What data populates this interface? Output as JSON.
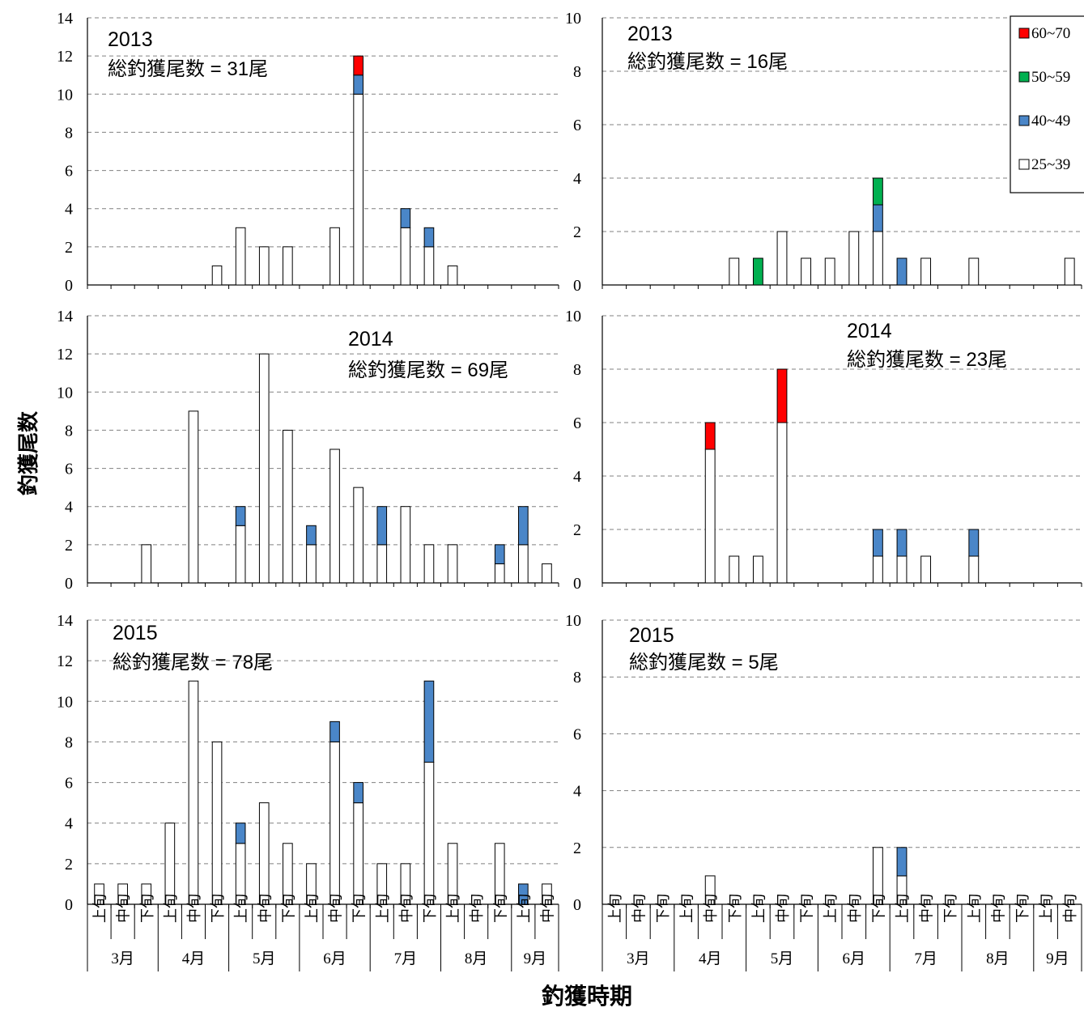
{
  "ylabel": "釣獲尾数",
  "xlabel": "釣獲時期",
  "colors": {
    "c60_70": "#ff0000",
    "c50_59": "#00b050",
    "c40_49": "#4a86c8",
    "c25_39": "#ffffff"
  },
  "legend": [
    {
      "label": "60~70",
      "color_key": "c60_70"
    },
    {
      "label": "50~59",
      "color_key": "c50_59"
    },
    {
      "label": "40~49",
      "color_key": "c40_49"
    },
    {
      "label": "25~39",
      "color_key": "c25_39"
    }
  ],
  "chart_data": [
    {
      "type": "bar",
      "panel": "left-2013",
      "year": "2013",
      "total": "総釣獲尾数 = 31尾",
      "ylim": [
        0,
        14
      ],
      "yticks": [
        0,
        2,
        4,
        6,
        8,
        10,
        12,
        14
      ],
      "categories": [
        "3月上旬",
        "3月中旬",
        "3月下旬",
        "4月上旬",
        "4月中旬",
        "4月下旬",
        "5月上旬",
        "5月中旬",
        "5月下旬",
        "6月上旬",
        "6月中旬",
        "6月下旬",
        "7月上旬",
        "7月中旬",
        "7月下旬",
        "8月上旬",
        "8月中旬",
        "8月下旬",
        "9月上旬",
        "9月中旬"
      ],
      "series": [
        {
          "name": "25~39",
          "color_key": "c25_39",
          "values": [
            0,
            0,
            0,
            0,
            0,
            1,
            3,
            2,
            2,
            0,
            3,
            10,
            0,
            3,
            2,
            1,
            0,
            0,
            0,
            0
          ]
        },
        {
          "name": "40~49",
          "color_key": "c40_49",
          "values": [
            0,
            0,
            0,
            0,
            0,
            0,
            0,
            0,
            0,
            0,
            0,
            1,
            0,
            1,
            1,
            0,
            0,
            0,
            0,
            0
          ]
        },
        {
          "name": "50~59",
          "color_key": "c50_59",
          "values": [
            0,
            0,
            0,
            0,
            0,
            0,
            0,
            0,
            0,
            0,
            0,
            0,
            0,
            0,
            0,
            0,
            0,
            0,
            0,
            0
          ]
        },
        {
          "name": "60~70",
          "color_key": "c60_70",
          "values": [
            0,
            0,
            0,
            0,
            0,
            0,
            0,
            0,
            0,
            0,
            0,
            1,
            0,
            0,
            0,
            0,
            0,
            0,
            0,
            0
          ]
        }
      ]
    },
    {
      "type": "bar",
      "panel": "right-2013",
      "year": "2013",
      "total": "総釣獲尾数 = 16尾",
      "ylim": [
        0,
        10
      ],
      "yticks": [
        0,
        2,
        4,
        6,
        8,
        10
      ],
      "categories": [
        "3月上旬",
        "3月中旬",
        "3月下旬",
        "4月上旬",
        "4月中旬",
        "4月下旬",
        "5月上旬",
        "5月中旬",
        "5月下旬",
        "6月上旬",
        "6月中旬",
        "6月下旬",
        "7月上旬",
        "7月中旬",
        "7月下旬",
        "8月上旬",
        "8月中旬",
        "8月下旬",
        "9月上旬",
        "9月中旬"
      ],
      "series": [
        {
          "name": "25~39",
          "color_key": "c25_39",
          "values": [
            0,
            0,
            0,
            0,
            0,
            1,
            0,
            2,
            1,
            1,
            2,
            2,
            0,
            1,
            0,
            1,
            0,
            0,
            0,
            1
          ]
        },
        {
          "name": "40~49",
          "color_key": "c40_49",
          "values": [
            0,
            0,
            0,
            0,
            0,
            0,
            0,
            0,
            0,
            0,
            0,
            1,
            1,
            0,
            0,
            0,
            0,
            0,
            0,
            0
          ]
        },
        {
          "name": "50~59",
          "color_key": "c50_59",
          "values": [
            0,
            0,
            0,
            0,
            0,
            0,
            1,
            0,
            0,
            0,
            0,
            1,
            0,
            0,
            0,
            0,
            0,
            0,
            0,
            0
          ]
        },
        {
          "name": "60~70",
          "color_key": "c60_70",
          "values": [
            0,
            0,
            0,
            0,
            0,
            0,
            0,
            0,
            0,
            0,
            0,
            0,
            0,
            0,
            0,
            0,
            0,
            0,
            0,
            0
          ]
        }
      ]
    },
    {
      "type": "bar",
      "panel": "left-2014",
      "year": "2014",
      "total": "総釣獲尾数 = 69尾",
      "ylim": [
        0,
        14
      ],
      "yticks": [
        0,
        2,
        4,
        6,
        8,
        10,
        12,
        14
      ],
      "categories": [
        "3月上旬",
        "3月中旬",
        "3月下旬",
        "4月上旬",
        "4月中旬",
        "4月下旬",
        "5月上旬",
        "5月中旬",
        "5月下旬",
        "6月上旬",
        "6月中旬",
        "6月下旬",
        "7月上旬",
        "7月中旬",
        "7月下旬",
        "8月上旬",
        "8月中旬",
        "8月下旬",
        "9月上旬",
        "9月中旬"
      ],
      "series": [
        {
          "name": "25~39",
          "color_key": "c25_39",
          "values": [
            0,
            0,
            2,
            0,
            9,
            0,
            3,
            12,
            8,
            2,
            7,
            5,
            2,
            4,
            2,
            2,
            0,
            1,
            2,
            1
          ]
        },
        {
          "name": "40~49",
          "color_key": "c40_49",
          "values": [
            0,
            0,
            0,
            0,
            0,
            0,
            1,
            0,
            0,
            1,
            0,
            0,
            2,
            0,
            0,
            0,
            0,
            1,
            2,
            0
          ]
        },
        {
          "name": "50~59",
          "color_key": "c50_59",
          "values": [
            0,
            0,
            0,
            0,
            0,
            0,
            0,
            0,
            0,
            0,
            0,
            0,
            0,
            0,
            0,
            0,
            0,
            0,
            0,
            0
          ]
        },
        {
          "name": "60~70",
          "color_key": "c60_70",
          "values": [
            0,
            0,
            0,
            0,
            0,
            0,
            0,
            0,
            0,
            0,
            0,
            0,
            0,
            0,
            0,
            0,
            0,
            0,
            0,
            0
          ]
        }
      ]
    },
    {
      "type": "bar",
      "panel": "right-2014",
      "year": "2014",
      "total": "総釣獲尾数 = 23尾",
      "ylim": [
        0,
        10
      ],
      "yticks": [
        0,
        2,
        4,
        6,
        8,
        10
      ],
      "categories": [
        "3月上旬",
        "3月中旬",
        "3月下旬",
        "4月上旬",
        "4月中旬",
        "4月下旬",
        "5月上旬",
        "5月中旬",
        "5月下旬",
        "6月上旬",
        "6月中旬",
        "6月下旬",
        "7月上旬",
        "7月中旬",
        "7月下旬",
        "8月上旬",
        "8月中旬",
        "8月下旬",
        "9月上旬",
        "9月中旬"
      ],
      "series": [
        {
          "name": "25~39",
          "color_key": "c25_39",
          "values": [
            0,
            0,
            0,
            0,
            5,
            1,
            1,
            6,
            0,
            0,
            0,
            1,
            1,
            1,
            0,
            1,
            0,
            0,
            0,
            0
          ]
        },
        {
          "name": "40~49",
          "color_key": "c40_49",
          "values": [
            0,
            0,
            0,
            0,
            0,
            0,
            0,
            0,
            0,
            0,
            0,
            1,
            1,
            0,
            0,
            1,
            0,
            0,
            0,
            0
          ]
        },
        {
          "name": "50~59",
          "color_key": "c50_59",
          "values": [
            0,
            0,
            0,
            0,
            0,
            0,
            0,
            0,
            0,
            0,
            0,
            0,
            0,
            0,
            0,
            0,
            0,
            0,
            0,
            0
          ]
        },
        {
          "name": "60~70",
          "color_key": "c60_70",
          "values": [
            0,
            0,
            0,
            0,
            1,
            0,
            0,
            2,
            0,
            0,
            0,
            0,
            0,
            0,
            0,
            0,
            0,
            0,
            0,
            0
          ]
        }
      ]
    },
    {
      "type": "bar",
      "panel": "left-2015",
      "year": "2015",
      "total": "総釣獲尾数 = 78尾",
      "ylim": [
        0,
        14
      ],
      "yticks": [
        0,
        2,
        4,
        6,
        8,
        10,
        12,
        14
      ],
      "categories": [
        "3月上旬",
        "3月中旬",
        "3月下旬",
        "4月上旬",
        "4月中旬",
        "4月下旬",
        "5月上旬",
        "5月中旬",
        "5月下旬",
        "6月上旬",
        "6月中旬",
        "6月下旬",
        "7月上旬",
        "7月中旬",
        "7月下旬",
        "8月上旬",
        "8月中旬",
        "8月下旬",
        "9月上旬",
        "9月中旬"
      ],
      "series": [
        {
          "name": "25~39",
          "color_key": "c25_39",
          "values": [
            1,
            1,
            1,
            4,
            11,
            8,
            3,
            5,
            3,
            2,
            8,
            5,
            2,
            2,
            7,
            3,
            0,
            3,
            0,
            1
          ]
        },
        {
          "name": "40~49",
          "color_key": "c40_49",
          "values": [
            0,
            0,
            0,
            0,
            0,
            0,
            1,
            0,
            0,
            0,
            1,
            1,
            0,
            0,
            4,
            0,
            0,
            0,
            1,
            0
          ]
        },
        {
          "name": "50~59",
          "color_key": "c50_59",
          "values": [
            0,
            0,
            0,
            0,
            0,
            0,
            0,
            0,
            0,
            0,
            0,
            0,
            0,
            0,
            0,
            0,
            0,
            0,
            0,
            0
          ]
        },
        {
          "name": "60~70",
          "color_key": "c60_70",
          "values": [
            0,
            0,
            0,
            0,
            0,
            0,
            0,
            0,
            0,
            0,
            0,
            0,
            0,
            0,
            0,
            0,
            0,
            0,
            0,
            0
          ]
        }
      ]
    },
    {
      "type": "bar",
      "panel": "right-2015",
      "year": "2015",
      "total": "総釣獲尾数 = 5尾",
      "ylim": [
        0,
        10
      ],
      "yticks": [
        0,
        2,
        4,
        6,
        8,
        10
      ],
      "categories": [
        "3月上旬",
        "3月中旬",
        "3月下旬",
        "4月上旬",
        "4月中旬",
        "4月下旬",
        "5月上旬",
        "5月中旬",
        "5月下旬",
        "6月上旬",
        "6月中旬",
        "6月下旬",
        "7月上旬",
        "7月中旬",
        "7月下旬",
        "8月上旬",
        "8月中旬",
        "8月下旬",
        "9月上旬",
        "9月中旬"
      ],
      "series": [
        {
          "name": "25~39",
          "color_key": "c25_39",
          "values": [
            0,
            0,
            0,
            0,
            1,
            0,
            0,
            0,
            0,
            0,
            0,
            2,
            1,
            0,
            0,
            0,
            0,
            0,
            0,
            0
          ]
        },
        {
          "name": "40~49",
          "color_key": "c40_49",
          "values": [
            0,
            0,
            0,
            0,
            0,
            0,
            0,
            0,
            0,
            0,
            0,
            0,
            1,
            0,
            0,
            0,
            0,
            0,
            0,
            0
          ]
        },
        {
          "name": "50~59",
          "color_key": "c50_59",
          "values": [
            0,
            0,
            0,
            0,
            0,
            0,
            0,
            0,
            0,
            0,
            0,
            0,
            0,
            0,
            0,
            0,
            0,
            0,
            0,
            0
          ]
        },
        {
          "name": "60~70",
          "color_key": "c60_70",
          "values": [
            0,
            0,
            0,
            0,
            0,
            0,
            0,
            0,
            0,
            0,
            0,
            0,
            0,
            0,
            0,
            0,
            0,
            0,
            0,
            0
          ]
        }
      ]
    }
  ],
  "xaxis": {
    "periods": [
      "上旬",
      "中旬",
      "下旬"
    ],
    "months": [
      "3月",
      "4月",
      "5月",
      "6月",
      "7月",
      "8月",
      "9月"
    ]
  }
}
